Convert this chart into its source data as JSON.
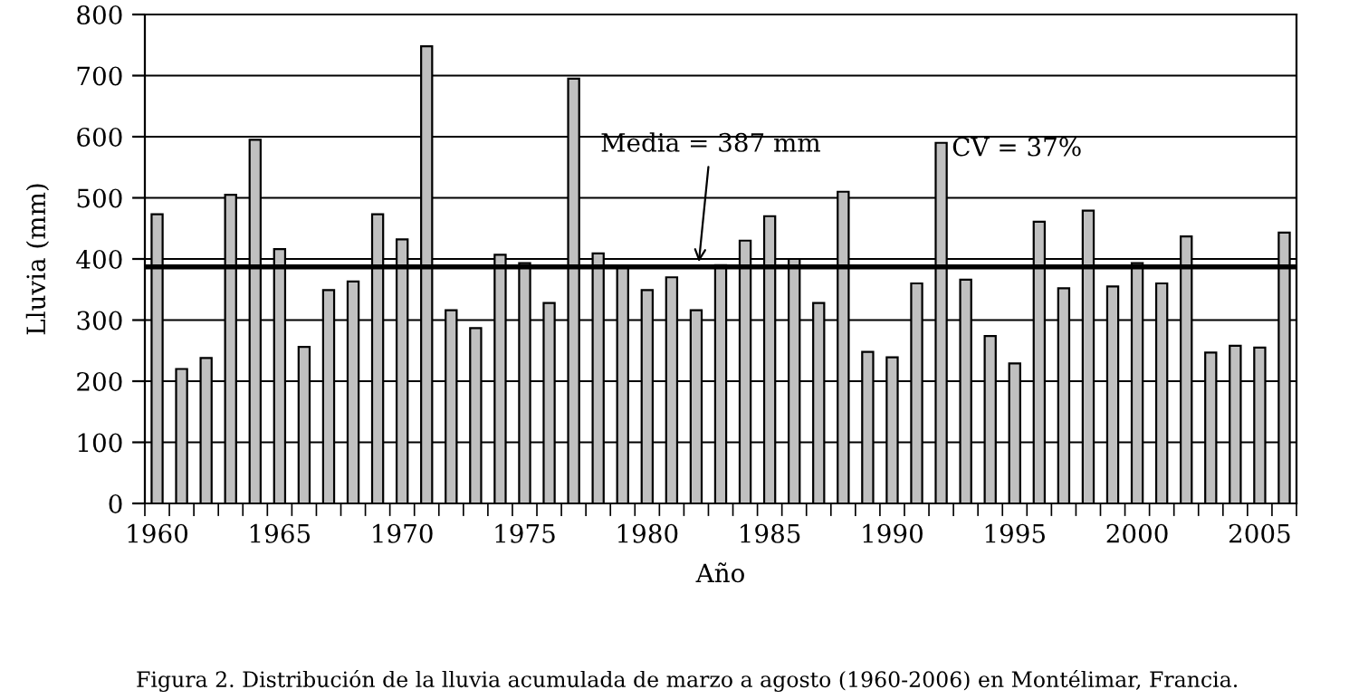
{
  "chart_data": {
    "type": "bar",
    "xlabel": "Año",
    "ylabel": "Lluvia (mm)",
    "categories": [
      "1960",
      null,
      null,
      null,
      null,
      "1965",
      null,
      null,
      null,
      null,
      "1970",
      null,
      null,
      null,
      null,
      "1975",
      null,
      null,
      null,
      null,
      "1980",
      null,
      null,
      null,
      null,
      "1985",
      null,
      null,
      null,
      null,
      "1990",
      null,
      null,
      null,
      null,
      "1995",
      null,
      null,
      null,
      null,
      "2000",
      null,
      null,
      null,
      null,
      "2005",
      null
    ],
    "values": [
      473,
      220,
      238,
      505,
      595,
      416,
      256,
      349,
      363,
      473,
      432,
      748,
      316,
      287,
      407,
      393,
      328,
      695,
      409,
      387,
      349,
      370,
      316,
      390,
      430,
      470,
      400,
      328,
      510,
      248,
      239,
      360,
      590,
      366,
      274,
      229,
      461,
      352,
      479,
      355,
      393,
      360,
      437,
      247,
      258,
      255,
      443
    ],
    "color": "#c0c0c0",
    "ylim": [
      0,
      800
    ],
    "yticks": [
      0,
      100,
      200,
      300,
      400,
      500,
      600,
      700,
      800
    ],
    "grid": "y",
    "ref_lines": [
      {
        "axis": "y",
        "value": 387,
        "label": "Media = 387 mm",
        "color": "#000000"
      }
    ],
    "annotations": [
      "CV = 37%",
      "Figura 2. Distribución de la lluvia acumulada de marzo a agosto (1960-2006) en Montélimar, Francia."
    ]
  }
}
